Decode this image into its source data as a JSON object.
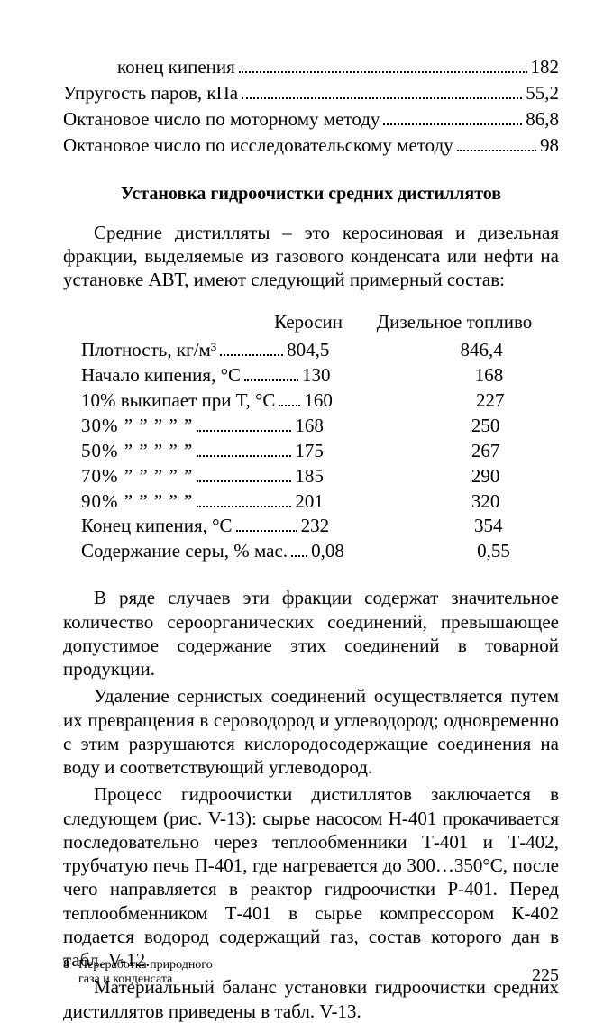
{
  "top_list": [
    {
      "label": "конец кипения",
      "value": "182",
      "indent": true
    },
    {
      "label": "Упругость паров, кПа",
      "value": "55,2",
      "indent": false
    },
    {
      "label": "Октановое число по моторному методу",
      "value": "86,8",
      "indent": false
    },
    {
      "label": "Октановое число по исследовательскому методу",
      "value": "98",
      "indent": false
    }
  ],
  "section_title": "Установка гидроочистки средних дистиллятов",
  "para1": "Средние дистилляты – это керосиновая и дизельная фракции, выделяемые из газового конденсата или нефти на установке АВТ, имеют следующий примерный состав:",
  "table": {
    "head": {
      "c1": "Керосин",
      "c2": "Дизельное топливо"
    },
    "rows": [
      {
        "label": "Плотность, кг/м³",
        "v1": "804,5",
        "v2": "846,4",
        "gap": 70
      },
      {
        "label": "Начало кипения, °С",
        "v1": "130",
        "v2": "168",
        "gap": 60
      },
      {
        "label": "10% выкипает при Т, °С",
        "v1": "160",
        "v2": "227",
        "gap": 24
      },
      {
        "label": "30%   ” ” ” ” ”",
        "v1": "168",
        "v2": "250",
        "gap": 105,
        "ditto": true
      },
      {
        "label": "50%   ” ” ” ” ”",
        "v1": "175",
        "v2": "267",
        "gap": 105,
        "ditto": true
      },
      {
        "label": "70%   ” ” ” ” ”",
        "v1": "185",
        "v2": "290",
        "gap": 105,
        "ditto": true
      },
      {
        "label": "90%   ” ” ” ” ”",
        "v1": "201",
        "v2": "320",
        "gap": 105,
        "ditto": true
      },
      {
        "label": "Конец кипения, °С",
        "v1": "232",
        "v2": "354",
        "gap": 68
      },
      {
        "label": "Содержание серы, % мас.",
        "v1": "0,08",
        "v2": "0,55",
        "gap": 18
      }
    ]
  },
  "para2": "В ряде случаев эти фракции содержат значительное количество сероорганических соединений, превышающее допустимое содержание этих соединений в товарной продукции.",
  "para3": "Удаление сернистых соединений осуществляется путем их превращения в сероводород и углеводород; одновременно с этим разрушаются кислородосодержащие соединения на воду и соответствующий углеводород.",
  "para4": "Процесс гидроочистки дистиллятов заключается в следующем (рис. V-13): сырье насосом Н-401 прокачивается последовательно через теплообменники Т-401 и Т-402, трубчатую печь П-401, где нагревается до 300…350°С, после чего направляется в реактор гидроочистки Р-401. Перед теплообменником Т-401 в сырье компрессором К-402 подается водород содержащий газ, состав которого дан в табл. V-12.",
  "para5": "Материальный баланс установки гидроочистки средних дистиллятов приведены в табл. V-13.",
  "footer": {
    "bullet": "8",
    "text1": "Переработка природного",
    "text2": "газа и конденсата",
    "pagenum": "225"
  }
}
